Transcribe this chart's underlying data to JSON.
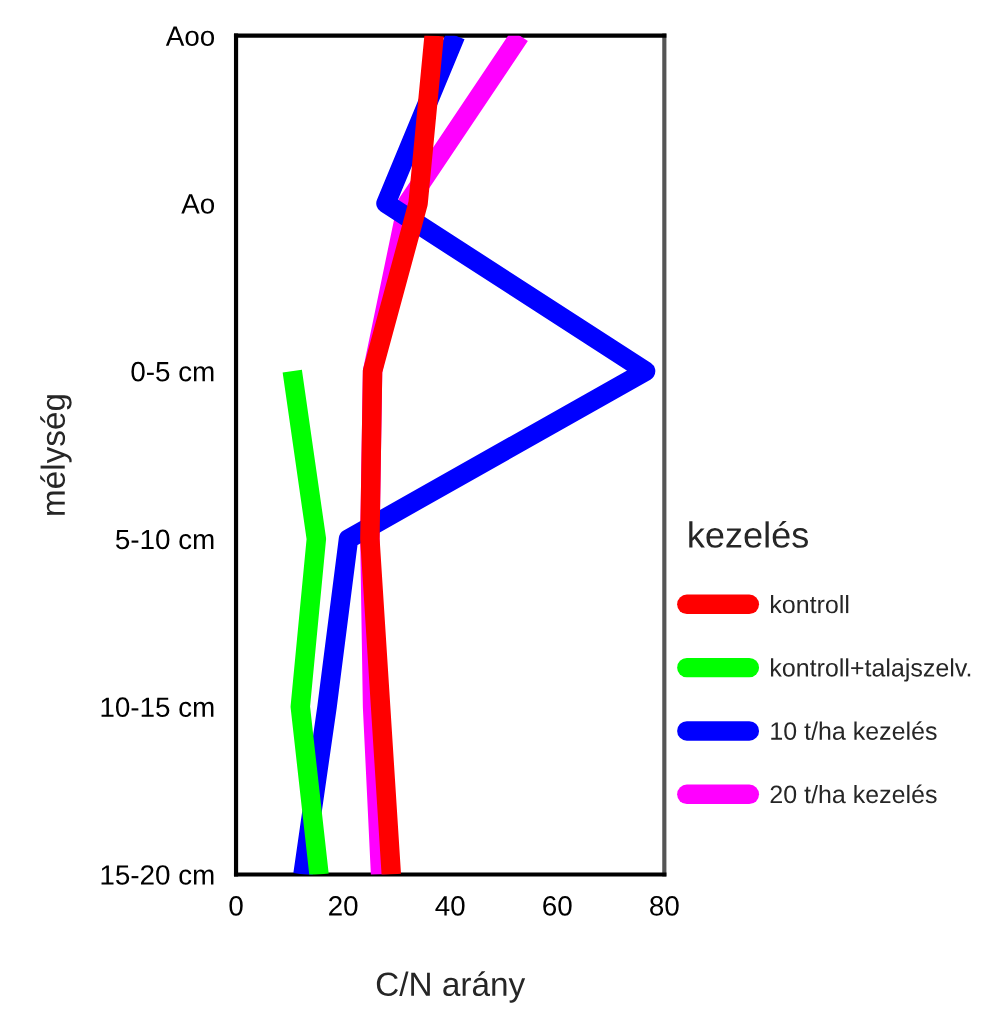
{
  "chart_data": {
    "type": "line",
    "orientation": "horizontal",
    "xlabel": "C/N arány",
    "ylabel": "mélység",
    "legend_title": "kezelés",
    "categories": [
      "Aoo",
      "Ao",
      "0-5 cm",
      "5-10 cm",
      "10-15 cm",
      "15-20 cm"
    ],
    "series": [
      {
        "name": "kontroll",
        "color": "#ff0000",
        "values": [
          37,
          34,
          25.5,
          25,
          27,
          29
        ]
      },
      {
        "name": "kontroll+talajszelv.",
        "color": "#00ff00",
        "values": [
          null,
          null,
          10.5,
          15,
          12,
          15.5
        ]
      },
      {
        "name": "10 t/ha kezelés",
        "color": "#0000ff",
        "values": [
          41,
          28,
          76.5,
          21,
          17,
          12.5
        ]
      },
      {
        "name": "20 t/ha kezelés",
        "color": "#ff00ff",
        "values": [
          53,
          32,
          25.5,
          25,
          25.5,
          27
        ]
      }
    ],
    "xlim": [
      0,
      80
    ],
    "xticks": [
      0,
      20,
      40,
      60,
      80
    ],
    "grid": false,
    "legend": "right",
    "marker": "none",
    "line_style": "solid"
  }
}
